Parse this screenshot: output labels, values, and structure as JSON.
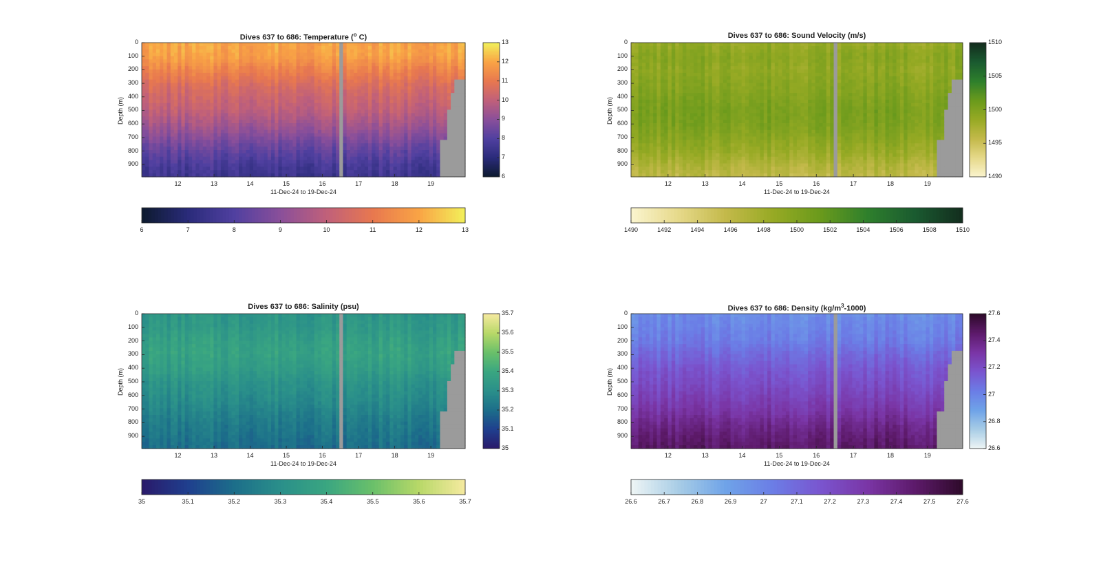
{
  "chart_data": [
    {
      "type": "heatmap",
      "variable": "temperature",
      "title": "Dives 637 to 686: Temperature (° C)",
      "title_parts": [
        "Dives 637 to 686: Temperature (",
        "o",
        " C)"
      ],
      "xlabel": "11-Dec-24 to 19-Dec-24",
      "ylabel": "Depth (m)",
      "x_ticks": [
        "12",
        "13",
        "14",
        "15",
        "16",
        "17",
        "18",
        "19"
      ],
      "y_ticks": [
        "0",
        "100",
        "200",
        "300",
        "400",
        "500",
        "600",
        "700",
        "800",
        "900"
      ],
      "xlim": [
        11.0,
        19.95
      ],
      "ylim": [
        0,
        990
      ],
      "colorbar_ticks": [
        "6",
        "7",
        "8",
        "9",
        "10",
        "11",
        "12",
        "13"
      ],
      "h_colorbar_ticks": [
        "6",
        "7",
        "8",
        "9",
        "10",
        "11",
        "12",
        "13"
      ],
      "clim": [
        6,
        13
      ],
      "colormap": [
        "#0d1a2e",
        "#2a2b7a",
        "#5040a0",
        "#8a4f9a",
        "#c0607a",
        "#e8784f",
        "#f9a445",
        "#f2f05a"
      ],
      "profile": [
        [
          0,
          12.0
        ],
        [
          100,
          11.9
        ],
        [
          200,
          11.3
        ],
        [
          300,
          10.7
        ],
        [
          400,
          10.3
        ],
        [
          500,
          10.0
        ],
        [
          600,
          9.5
        ],
        [
          700,
          8.9
        ],
        [
          800,
          8.3
        ],
        [
          900,
          7.8
        ],
        [
          990,
          7.5
        ]
      ],
      "gap_x": [
        16.45,
        16.6
      ],
      "no_data_depth_ramp": [
        [
          19.3,
          720
        ],
        [
          19.5,
          500
        ],
        [
          19.6,
          360
        ],
        [
          19.7,
          280
        ],
        [
          19.95,
          280
        ]
      ]
    },
    {
      "type": "heatmap",
      "variable": "sound_velocity",
      "title": "Dives 637 to 686: Sound Velocity (m/s)",
      "xlabel": "11-Dec-24 to 19-Dec-24",
      "ylabel": "Depth (m)",
      "x_ticks": [
        "12",
        "13",
        "14",
        "15",
        "16",
        "17",
        "18",
        "19"
      ],
      "y_ticks": [
        "0",
        "100",
        "200",
        "300",
        "400",
        "500",
        "600",
        "700",
        "800",
        "900"
      ],
      "xlim": [
        11.0,
        19.95
      ],
      "ylim": [
        0,
        990
      ],
      "colorbar_ticks": [
        "1490",
        "1495",
        "1500",
        "1505",
        "1510"
      ],
      "h_colorbar_ticks": [
        "1490",
        "1492",
        "1494",
        "1496",
        "1498",
        "1500",
        "1502",
        "1504",
        "1506",
        "1508",
        "1510"
      ],
      "clim": [
        1490,
        1510
      ],
      "colormap": [
        "#fbf5cf",
        "#e6d98a",
        "#c3b94a",
        "#97aa24",
        "#6a9a1c",
        "#2e7f2c",
        "#1a5a30",
        "#132d1e"
      ],
      "profile": [
        [
          0,
          1498.5
        ],
        [
          100,
          1499.5
        ],
        [
          200,
          1499.0
        ],
        [
          300,
          1499.5
        ],
        [
          400,
          1500.0
        ],
        [
          500,
          1500.5
        ],
        [
          600,
          1500.3
        ],
        [
          700,
          1499.5
        ],
        [
          800,
          1498.5
        ],
        [
          900,
          1497.0
        ],
        [
          990,
          1496.0
        ]
      ],
      "gap_x": [
        16.45,
        16.6
      ],
      "no_data_depth_ramp": [
        [
          19.3,
          720
        ],
        [
          19.5,
          500
        ],
        [
          19.6,
          360
        ],
        [
          19.7,
          280
        ],
        [
          19.95,
          280
        ]
      ]
    },
    {
      "type": "heatmap",
      "variable": "salinity",
      "title": "Dives 637 to 686: Salinity (psu)",
      "xlabel": "11-Dec-24 to 19-Dec-24",
      "ylabel": "Depth (m)",
      "x_ticks": [
        "12",
        "13",
        "14",
        "15",
        "16",
        "17",
        "18",
        "19"
      ],
      "y_ticks": [
        "0",
        "100",
        "200",
        "300",
        "400",
        "500",
        "600",
        "700",
        "800",
        "900"
      ],
      "xlim": [
        11.0,
        19.95
      ],
      "ylim": [
        0,
        990
      ],
      "colorbar_ticks": [
        "35",
        "35.1",
        "35.2",
        "35.3",
        "35.4",
        "35.5",
        "35.6",
        "35.7"
      ],
      "h_colorbar_ticks": [
        "35",
        "35.1",
        "35.2",
        "35.3",
        "35.4",
        "35.5",
        "35.6",
        "35.7"
      ],
      "clim": [
        35,
        35.7
      ],
      "colormap": [
        "#2a1a6a",
        "#1f3f8e",
        "#1c6e8a",
        "#2a8f8a",
        "#3aa681",
        "#6ac06a",
        "#b8d868",
        "#f6eaa0"
      ],
      "profile": [
        [
          0,
          35.33
        ],
        [
          100,
          35.34
        ],
        [
          200,
          35.37
        ],
        [
          300,
          35.38
        ],
        [
          400,
          35.36
        ],
        [
          500,
          35.32
        ],
        [
          600,
          35.3
        ],
        [
          700,
          35.27
        ],
        [
          800,
          35.24
        ],
        [
          900,
          35.22
        ],
        [
          990,
          35.2
        ]
      ],
      "gap_x": [
        16.45,
        16.6
      ],
      "no_data_depth_ramp": [
        [
          19.3,
          720
        ],
        [
          19.5,
          500
        ],
        [
          19.6,
          360
        ],
        [
          19.7,
          280
        ],
        [
          19.95,
          280
        ]
      ]
    },
    {
      "type": "heatmap",
      "variable": "density",
      "title": "Dives 637 to 686: Density (kg/m³-1000)",
      "title_parts": [
        "Dives 637 to 686: Density (kg/m",
        "3",
        "-1000)"
      ],
      "xlabel": "11-Dec-24 to 19-Dec-24",
      "ylabel": "Depth (m)",
      "x_ticks": [
        "12",
        "13",
        "14",
        "15",
        "16",
        "17",
        "18",
        "19"
      ],
      "y_ticks": [
        "0",
        "100",
        "200",
        "300",
        "400",
        "500",
        "600",
        "700",
        "800",
        "900"
      ],
      "xlim": [
        11.0,
        19.95
      ],
      "ylim": [
        0,
        990
      ],
      "colorbar_ticks": [
        "26.6",
        "26.8",
        "27",
        "27.2",
        "27.4",
        "27.6"
      ],
      "h_colorbar_ticks": [
        "26.6",
        "26.7",
        "26.8",
        "26.9",
        "27",
        "27.1",
        "27.2",
        "27.3",
        "27.4",
        "27.5",
        "27.6"
      ],
      "clim": [
        26.6,
        27.6
      ],
      "colormap": [
        "#eef5f5",
        "#a8cde6",
        "#6fa3e8",
        "#6b7de6",
        "#7a55cf",
        "#7a35a5",
        "#5d1a6a",
        "#2e0a2a"
      ],
      "profile": [
        [
          0,
          26.97
        ],
        [
          100,
          27.0
        ],
        [
          200,
          27.03
        ],
        [
          300,
          27.1
        ],
        [
          400,
          27.16
        ],
        [
          500,
          27.2
        ],
        [
          600,
          27.25
        ],
        [
          700,
          27.3
        ],
        [
          800,
          27.37
        ],
        [
          900,
          27.43
        ],
        [
          990,
          27.47
        ]
      ],
      "gap_x": [
        16.45,
        16.6
      ],
      "no_data_depth_ramp": [
        [
          19.3,
          720
        ],
        [
          19.5,
          500
        ],
        [
          19.6,
          360
        ],
        [
          19.7,
          280
        ],
        [
          19.95,
          280
        ]
      ]
    }
  ],
  "colors": {
    "no_data": "#9b9b9b",
    "axis": "#262626"
  }
}
